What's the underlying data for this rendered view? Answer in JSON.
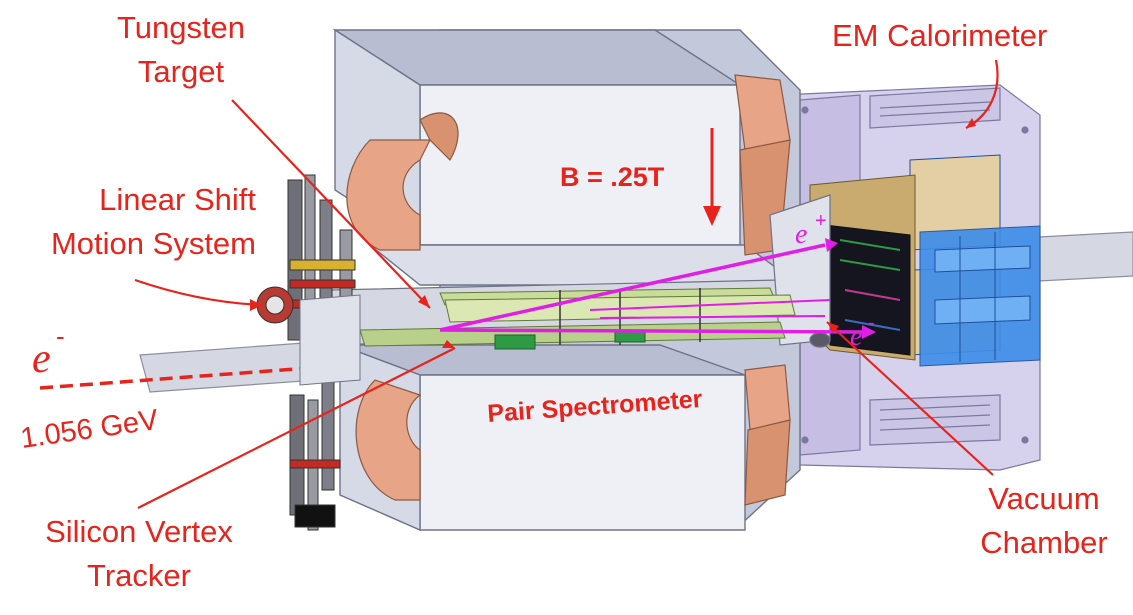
{
  "labels": {
    "tungsten_target": [
      "Tungsten",
      "Target"
    ],
    "em_calorimeter": "EM Calorimeter",
    "linear_shift": [
      "Linear Shift",
      "Motion System"
    ],
    "field": "B = .25T",
    "beam_symbol": "e",
    "beam_charge": "-",
    "beam_energy": "1.056 GeV",
    "pair_spectrometer": "Pair Spectrometer",
    "silicon_tracker": [
      "Silicon Vertex",
      "Tracker"
    ],
    "vacuum_chamber": [
      "Vacuum",
      "Chamber"
    ],
    "positron_symbol": "e",
    "positron_charge": "+",
    "electron_symbol": "e",
    "electron_charge": "-"
  },
  "colors": {
    "label_red": "#e8231c",
    "track_magenta": "#e01ee6",
    "magnet_steel": "#cfd3e3",
    "magnet_face": "#eef0f6",
    "coil_copper": "#e7a487",
    "frame_lavender": "#c9c3e3",
    "calorimeter_blue": "#3f8ee8",
    "crystal_wood": "#e3cfa3"
  }
}
